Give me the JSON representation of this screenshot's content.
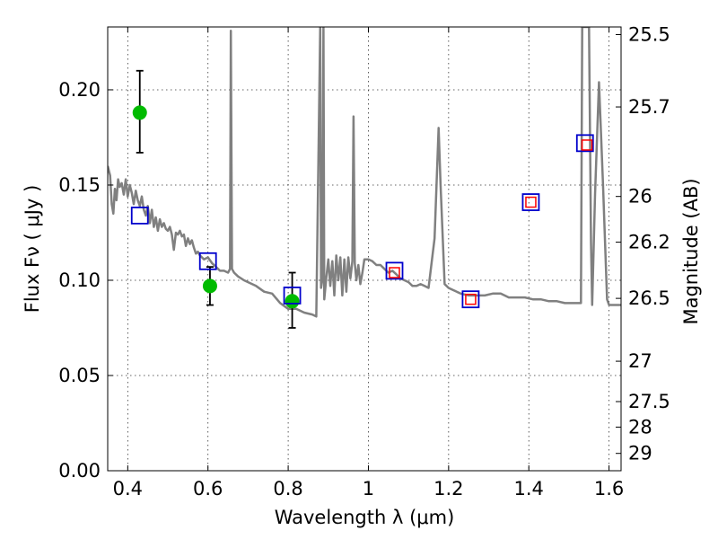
{
  "chart_data": {
    "type": "scatter",
    "xlabel": "Wavelength  λ (μm)",
    "ylabel": "Flux  Fν  ( μJy )",
    "y2label": "Magnitude (AB)",
    "xlim": [
      0.35,
      1.63
    ],
    "ylim": [
      0.0,
      0.233
    ],
    "x_ticks": [
      0.4,
      0.6,
      0.8,
      1.0,
      1.2,
      1.4,
      1.6
    ],
    "x_tick_labels": [
      "0.4",
      "0.6",
      "0.8",
      "1",
      "1.2",
      "1.4",
      "1.6"
    ],
    "y_ticks": [
      0.0,
      0.05,
      0.1,
      0.15,
      0.2
    ],
    "y_tick_labels": [
      "0.00",
      "0.05",
      "0.10",
      "0.15",
      "0.20"
    ],
    "y2_ticks": [
      {
        "flux": 0.229,
        "label": "25.5"
      },
      {
        "flux": 0.191,
        "label": "25.7"
      },
      {
        "flux": 0.144,
        "label": "26"
      },
      {
        "flux": 0.12,
        "label": "26.2"
      },
      {
        "flux": 0.0905,
        "label": "26.5"
      },
      {
        "flux": 0.0575,
        "label": "27"
      },
      {
        "flux": 0.0363,
        "label": "27.5"
      },
      {
        "flux": 0.0229,
        "label": "28"
      },
      {
        "flux": 0.0091,
        "label": "29"
      }
    ],
    "grid": true,
    "series": [
      {
        "type": "line",
        "color": "#808080",
        "points": [
          [
            0.35,
            0.16
          ],
          [
            0.356,
            0.155
          ],
          [
            0.36,
            0.14
          ],
          [
            0.364,
            0.135
          ],
          [
            0.368,
            0.148
          ],
          [
            0.372,
            0.142
          ],
          [
            0.376,
            0.153
          ],
          [
            0.38,
            0.149
          ],
          [
            0.385,
            0.151
          ],
          [
            0.39,
            0.145
          ],
          [
            0.395,
            0.153
          ],
          [
            0.4,
            0.144
          ],
          [
            0.405,
            0.15
          ],
          [
            0.41,
            0.146
          ],
          [
            0.415,
            0.14
          ],
          [
            0.42,
            0.147
          ],
          [
            0.425,
            0.142
          ],
          [
            0.43,
            0.139
          ],
          [
            0.435,
            0.144
          ],
          [
            0.44,
            0.137
          ],
          [
            0.445,
            0.134
          ],
          [
            0.45,
            0.139
          ],
          [
            0.455,
            0.13
          ],
          [
            0.46,
            0.137
          ],
          [
            0.465,
            0.128
          ],
          [
            0.47,
            0.133
          ],
          [
            0.475,
            0.126
          ],
          [
            0.48,
            0.132
          ],
          [
            0.485,
            0.128
          ],
          [
            0.49,
            0.13
          ],
          [
            0.495,
            0.127
          ],
          [
            0.5,
            0.126
          ],
          [
            0.505,
            0.128
          ],
          [
            0.51,
            0.124
          ],
          [
            0.515,
            0.116
          ],
          [
            0.52,
            0.125
          ],
          [
            0.525,
            0.124
          ],
          [
            0.53,
            0.126
          ],
          [
            0.535,
            0.123
          ],
          [
            0.54,
            0.124
          ],
          [
            0.545,
            0.118
          ],
          [
            0.55,
            0.122
          ],
          [
            0.555,
            0.119
          ],
          [
            0.56,
            0.121
          ],
          [
            0.565,
            0.117
          ],
          [
            0.57,
            0.114
          ],
          [
            0.575,
            0.115
          ],
          [
            0.58,
            0.113
          ],
          [
            0.59,
            0.111
          ],
          [
            0.6,
            0.112
          ],
          [
            0.61,
            0.109
          ],
          [
            0.62,
            0.107
          ],
          [
            0.63,
            0.105
          ],
          [
            0.64,
            0.105
          ],
          [
            0.65,
            0.104
          ],
          [
            0.655,
            0.106
          ],
          [
            0.657,
            0.231
          ],
          [
            0.66,
            0.106
          ],
          [
            0.665,
            0.104
          ],
          [
            0.675,
            0.102
          ],
          [
            0.69,
            0.1
          ],
          [
            0.7,
            0.099
          ],
          [
            0.72,
            0.097
          ],
          [
            0.74,
            0.094
          ],
          [
            0.76,
            0.093
          ],
          [
            0.78,
            0.088
          ],
          [
            0.8,
            0.085
          ],
          [
            0.82,
            0.085
          ],
          [
            0.84,
            0.083
          ],
          [
            0.86,
            0.082
          ],
          [
            0.87,
            0.081
          ],
          [
            0.88,
            0.233
          ],
          [
            0.882,
            0.096
          ],
          [
            0.885,
            0.1
          ],
          [
            0.888,
            0.233
          ],
          [
            0.89,
            0.09
          ],
          [
            0.895,
            0.101
          ],
          [
            0.9,
            0.111
          ],
          [
            0.905,
            0.097
          ],
          [
            0.91,
            0.11
          ],
          [
            0.915,
            0.092
          ],
          [
            0.92,
            0.113
          ],
          [
            0.925,
            0.1
          ],
          [
            0.93,
            0.112
          ],
          [
            0.935,
            0.092
          ],
          [
            0.94,
            0.111
          ],
          [
            0.945,
            0.094
          ],
          [
            0.95,
            0.112
          ],
          [
            0.955,
            0.101
          ],
          [
            0.96,
            0.11
          ],
          [
            0.963,
            0.186
          ],
          [
            0.966,
            0.109
          ],
          [
            0.97,
            0.1
          ],
          [
            0.975,
            0.108
          ],
          [
            0.98,
            0.098
          ],
          [
            0.985,
            0.104
          ],
          [
            0.99,
            0.111
          ],
          [
            1.0,
            0.111
          ],
          [
            1.01,
            0.11
          ],
          [
            1.02,
            0.108
          ],
          [
            1.03,
            0.108
          ],
          [
            1.04,
            0.106
          ],
          [
            1.05,
            0.104
          ],
          [
            1.06,
            0.105
          ],
          [
            1.07,
            0.103
          ],
          [
            1.08,
            0.101
          ],
          [
            1.09,
            0.1
          ],
          [
            1.1,
            0.099
          ],
          [
            1.11,
            0.097
          ],
          [
            1.12,
            0.097
          ],
          [
            1.13,
            0.098
          ],
          [
            1.14,
            0.097
          ],
          [
            1.15,
            0.096
          ],
          [
            1.165,
            0.122
          ],
          [
            1.175,
            0.18
          ],
          [
            1.18,
            0.15
          ],
          [
            1.19,
            0.098
          ],
          [
            1.2,
            0.096
          ],
          [
            1.21,
            0.095
          ],
          [
            1.23,
            0.093
          ],
          [
            1.25,
            0.092
          ],
          [
            1.27,
            0.092
          ],
          [
            1.29,
            0.092
          ],
          [
            1.31,
            0.093
          ],
          [
            1.33,
            0.093
          ],
          [
            1.35,
            0.091
          ],
          [
            1.37,
            0.091
          ],
          [
            1.39,
            0.091
          ],
          [
            1.41,
            0.09
          ],
          [
            1.43,
            0.09
          ],
          [
            1.45,
            0.089
          ],
          [
            1.47,
            0.089
          ],
          [
            1.49,
            0.088
          ],
          [
            1.51,
            0.088
          ],
          [
            1.53,
            0.088
          ],
          [
            1.533,
            0.233
          ],
          [
            1.55,
            0.233
          ],
          [
            1.555,
            0.12
          ],
          [
            1.558,
            0.087
          ],
          [
            1.565,
            0.145
          ],
          [
            1.575,
            0.204
          ],
          [
            1.585,
            0.15
          ],
          [
            1.595,
            0.09
          ],
          [
            1.6,
            0.087
          ],
          [
            1.61,
            0.087
          ],
          [
            1.63,
            0.087
          ]
        ]
      },
      {
        "type": "scatter",
        "marker": "circle",
        "color": "#00bb00",
        "points": [
          {
            "x": 0.43,
            "y": 0.188,
            "err_low": 0.167,
            "err_high": 0.21
          },
          {
            "x": 0.605,
            "y": 0.097,
            "err_low": 0.087,
            "err_high": 0.107
          },
          {
            "x": 0.81,
            "y": 0.089,
            "err_low": 0.075,
            "err_high": 0.104
          }
        ]
      },
      {
        "type": "scatter",
        "marker": "square-open",
        "color": "#0000cc",
        "points": [
          [
            0.43,
            0.134
          ],
          [
            0.6,
            0.11
          ],
          [
            0.81,
            0.092
          ],
          [
            1.065,
            0.105
          ],
          [
            1.255,
            0.09
          ],
          [
            1.405,
            0.141
          ],
          [
            1.54,
            0.172
          ]
        ]
      },
      {
        "type": "scatter",
        "marker": "square-open",
        "color": "#ff0000",
        "points": [
          [
            1.065,
            0.104
          ],
          [
            1.255,
            0.09
          ],
          [
            1.405,
            0.141
          ],
          [
            1.545,
            0.171
          ]
        ]
      }
    ]
  }
}
